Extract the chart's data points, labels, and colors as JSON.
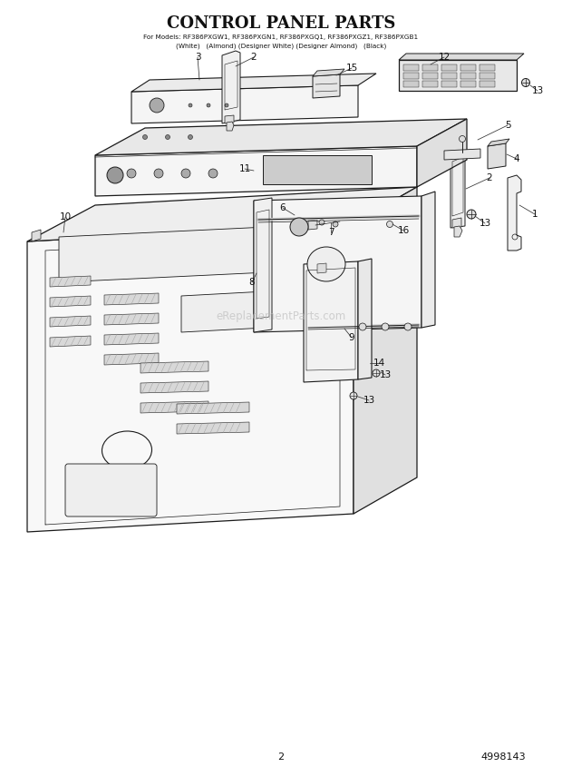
{
  "title": "CONTROL PANEL PARTS",
  "subtitle_line1": "For Models: RF386PXGW1, RF386PXGN1, RF386PXGQ1, RF386PXGZ1, RF386PXGB1",
  "subtitle_line2": "(White)   (Almond) (Designer White) (Designer Almond)   (Black)",
  "page_number": "2",
  "doc_number": "4998143",
  "watermark": "eReplacementParts.com",
  "bg_color": "#ffffff",
  "lc": "#1a1a1a",
  "tc": "#111111",
  "wc": "#bbbbbb"
}
